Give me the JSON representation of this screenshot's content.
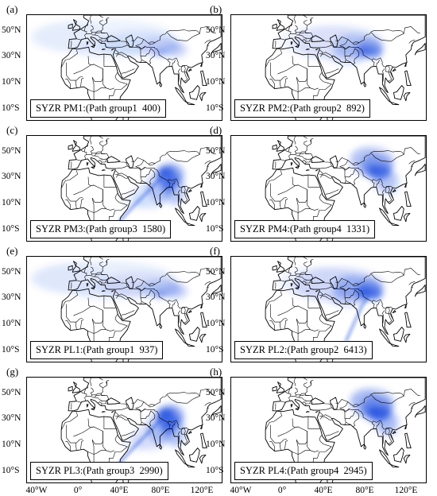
{
  "panels": [
    {
      "letter": "(a)",
      "caption": "SYZR PM1:(Path group1  400)",
      "pattern": "west",
      "intensity": 0.55
    },
    {
      "letter": "(b)",
      "caption": "SYZR PM2:(Path group2  892)",
      "pattern": "central",
      "intensity": 0.75
    },
    {
      "letter": "(c)",
      "caption": "SYZR PM3:(Path group3  1580)",
      "pattern": "south",
      "intensity": 0.9
    },
    {
      "letter": "(d)",
      "caption": "SYZR PM4:(Path group4  1331)",
      "pattern": "north",
      "intensity": 0.85
    },
    {
      "letter": "(e)",
      "caption": "SYZR PL1:(Path group1  937)",
      "pattern": "west",
      "intensity": 0.65
    },
    {
      "letter": "(f)",
      "caption": "SYZR PL2:(Path group2  6413)",
      "pattern": "central",
      "intensity": 1.0
    },
    {
      "letter": "(g)",
      "caption": "SYZR PL3:(Path group3  2990)",
      "pattern": "south",
      "intensity": 1.0
    },
    {
      "letter": "(h)",
      "caption": "SYZR PL4:(Path group4  2945)",
      "pattern": "north",
      "intensity": 1.0
    }
  ],
  "lat_ticks": [
    "50°N",
    "30°N",
    "10°N",
    "10°S"
  ],
  "lon_ticks": [
    "40°W",
    "0°",
    "40°E",
    "80°E",
    "120°E"
  ],
  "colors": {
    "trajectory": "#1f4fe0",
    "border": "#000000"
  }
}
